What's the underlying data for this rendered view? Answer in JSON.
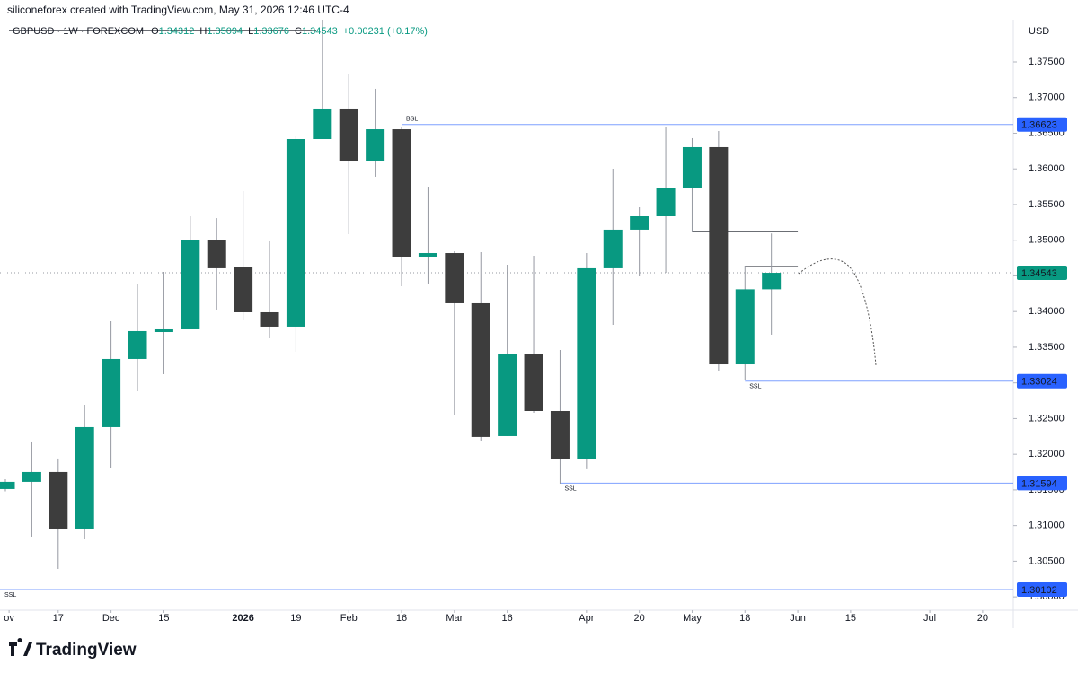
{
  "header": {
    "credit": "siliconeforex created with TradingView.com, May 31, 2026 12:46 UTC-4",
    "symbol": "GBPUSD · 1W · FOREXCOM",
    "change": "+0.00231 (+0.17%)",
    "currency": "USD",
    "brand": "TradingView"
  },
  "chart_data": {
    "type": "candlestick",
    "x": [
      0,
      1,
      2,
      3,
      4,
      5,
      6,
      7,
      8,
      9,
      10,
      11,
      12,
      13,
      14,
      15,
      16,
      17,
      18,
      19,
      20,
      21,
      22,
      23,
      24,
      25,
      26,
      27,
      28,
      29
    ],
    "open": [
      1.31512,
      1.31613,
      1.31751,
      1.30958,
      1.3238,
      1.33336,
      1.33713,
      1.33751,
      1.34997,
      1.3462,
      1.3399,
      1.33789,
      1.36418,
      1.36846,
      1.36116,
      1.36556,
      1.3477,
      1.3482,
      1.34116,
      1.32254,
      1.33399,
      1.32606,
      1.31927,
      1.34607,
      1.35148,
      1.35336,
      1.35726,
      1.36305,
      1.3326,
      1.34312
    ],
    "high": [
      1.3165,
      1.32166,
      1.3194,
      1.32694,
      1.33864,
      1.3438,
      1.34556,
      1.35336,
      1.3531,
      1.35689,
      1.34984,
      1.36456,
      1.38091,
      1.37336,
      1.37123,
      1.36594,
      1.35751,
      1.34846,
      1.34833,
      1.34657,
      1.34783,
      1.33462,
      1.3482,
      1.36003,
      1.35462,
      1.36582,
      1.36431,
      1.36531,
      1.34644,
      1.35094
    ],
    "low": [
      1.3148,
      1.30845,
      1.30392,
      1.30807,
      1.31801,
      1.32883,
      1.33122,
      1.33751,
      1.34028,
      1.33877,
      1.33625,
      1.33437,
      1.36418,
      1.35085,
      1.3589,
      1.34355,
      1.34393,
      1.32543,
      1.32191,
      1.32254,
      1.32581,
      1.31587,
      1.31789,
      1.33814,
      1.34493,
      1.34544,
      1.35122,
      1.3316,
      1.33034,
      1.33676
    ],
    "close": [
      1.31613,
      1.31751,
      1.30958,
      1.3238,
      1.33336,
      1.33726,
      1.33751,
      1.34997,
      1.34607,
      1.3399,
      1.33789,
      1.36418,
      1.36846,
      1.36116,
      1.36556,
      1.3477,
      1.3482,
      1.34116,
      1.32242,
      1.33399,
      1.32606,
      1.31927,
      1.34607,
      1.35148,
      1.35336,
      1.35726,
      1.36305,
      1.3326,
      1.34312,
      1.34543
    ],
    "up_color": "#089981",
    "down_color": "#3d3d3d",
    "xlim": [
      -0.204,
      38.16
    ],
    "ylim": [
      1.29813,
      1.38368
    ],
    "xticks": [
      {
        "value": 0.14,
        "label": "ov"
      },
      {
        "value": 2,
        "label": "17"
      },
      {
        "value": 4,
        "label": "Dec"
      },
      {
        "value": 6,
        "label": "15"
      },
      {
        "value": 9,
        "label": "2026"
      },
      {
        "value": 11,
        "label": "19"
      },
      {
        "value": 13,
        "label": "Feb"
      },
      {
        "value": 15,
        "label": "16"
      },
      {
        "value": 17,
        "label": "Mar"
      },
      {
        "value": 19,
        "label": "16"
      },
      {
        "value": 22,
        "label": "Apr"
      },
      {
        "value": 24,
        "label": "20"
      },
      {
        "value": 26,
        "label": "May"
      },
      {
        "value": 28,
        "label": "18"
      },
      {
        "value": 30,
        "label": "Jun"
      },
      {
        "value": 32,
        "label": "15"
      },
      {
        "value": 35,
        "label": "Jul"
      },
      {
        "value": 37,
        "label": "20"
      }
    ],
    "yticks": [
      {
        "value": 1.3,
        "label": "1.30000"
      },
      {
        "value": 1.305,
        "label": "1.30500"
      },
      {
        "value": 1.31,
        "label": "1.31000"
      },
      {
        "value": 1.315,
        "label": "1.31500"
      },
      {
        "value": 1.32,
        "label": "1.32000"
      },
      {
        "value": 1.325,
        "label": "1.32500"
      },
      {
        "value": 1.33,
        "label": "1.33000"
      },
      {
        "value": 1.335,
        "label": "1.33500"
      },
      {
        "value": 1.34,
        "label": "1.34000"
      },
      {
        "value": 1.345,
        "label": "1.34500"
      },
      {
        "value": 1.35,
        "label": "1.35000"
      },
      {
        "value": 1.355,
        "label": "1.35500"
      },
      {
        "value": 1.36,
        "label": "1.36000"
      },
      {
        "value": 1.365,
        "label": "1.36500"
      },
      {
        "value": 1.37,
        "label": "1.37000"
      },
      {
        "value": 1.375,
        "label": "1.37500"
      }
    ],
    "grid": false,
    "levels": [
      {
        "value": 1.36623,
        "start": 15,
        "tag": "BSL",
        "tag_side": "above"
      },
      {
        "value": 1.33024,
        "start": 28,
        "tag": "SSL",
        "tag_side": "below"
      },
      {
        "value": 1.31594,
        "start": 21,
        "tag": "SSL",
        "tag_side": "below"
      },
      {
        "value": 1.30102,
        "tag": "SSL",
        "tag_side": "below"
      }
    ],
    "level_color": "#2962ff",
    "segments": [
      {
        "value": 1.35122,
        "start": 26,
        "end": 30
      },
      {
        "value": 1.34631,
        "start": 28,
        "end": 30
      }
    ]
  }
}
